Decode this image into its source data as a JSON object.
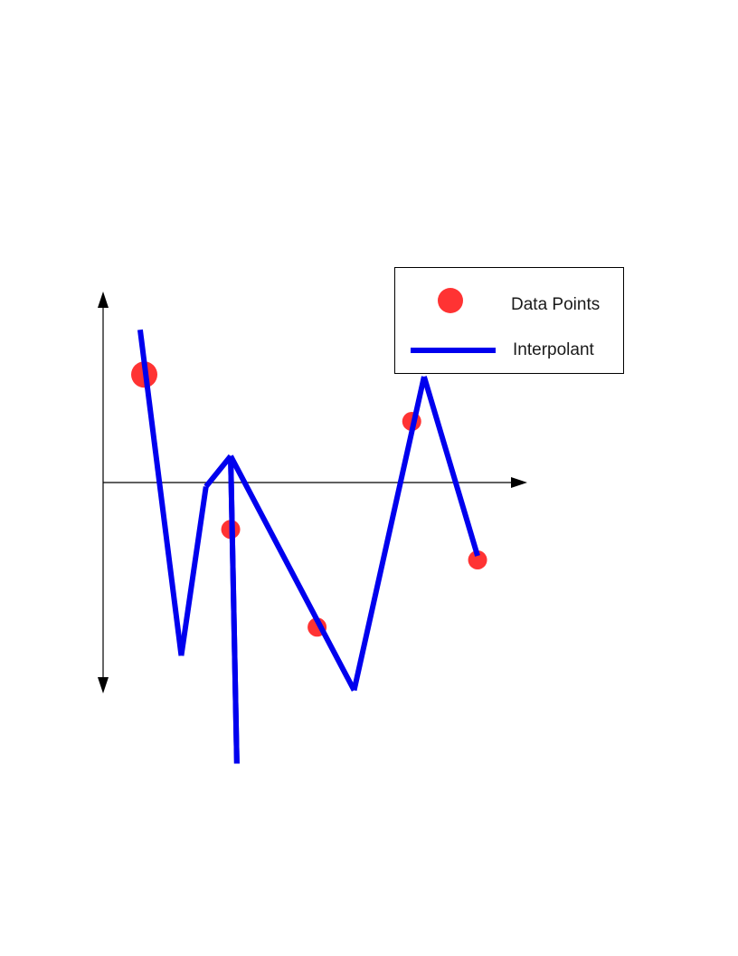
{
  "chart_data": {
    "type": "line",
    "title": "",
    "xlabel": "",
    "ylabel": "",
    "grid": false,
    "legend_position": "top-right",
    "xlim": [
      0,
      10
    ],
    "ylim": [
      -10,
      10
    ],
    "series": [
      {
        "name": "Data Points",
        "kind": "scatter",
        "color": "#ff3333",
        "x": [
          1,
          3.1,
          5.2,
          7.5,
          9.1
        ],
        "y": [
          5.3,
          -2.3,
          -7.1,
          3.0,
          -3.8
        ]
      },
      {
        "name": "Interpolant",
        "kind": "line",
        "color": "#0000ee",
        "x": [
          0.9,
          1.9,
          2.5,
          3.1,
          3.25,
          3.1,
          6.1,
          7.8,
          9.1
        ],
        "y": [
          7.5,
          -8.5,
          -0.2,
          1.3,
          -13.8,
          1.3,
          -10.2,
          5.2,
          -3.6
        ]
      }
    ]
  }
}
